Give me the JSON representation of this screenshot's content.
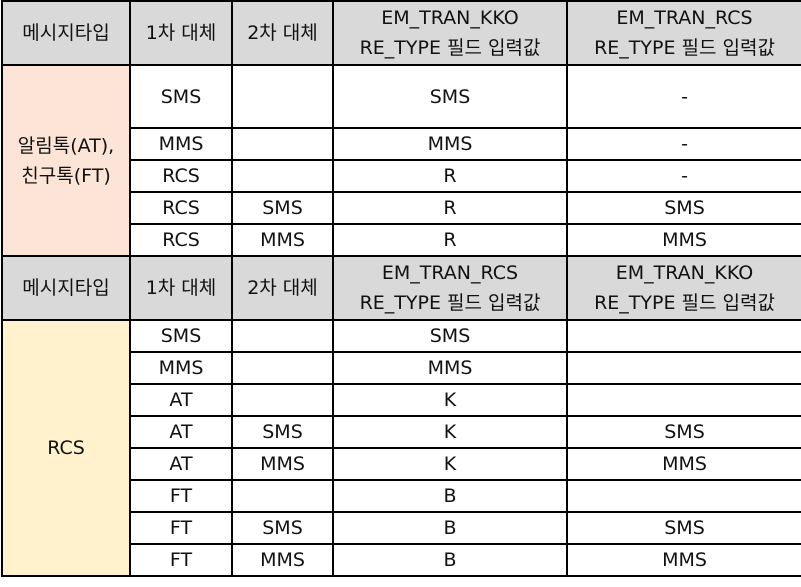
{
  "section1": {
    "header": {
      "col1": "메시지타입",
      "col2": "1차 대체",
      "col3": "2차 대체",
      "col4_line1": "EM_TRAN_KKO",
      "col4_line2": "RE_TYPE 필드 입력값",
      "col5_line1": "EM_TRAN_RCS",
      "col5_line2": "RE_TYPE 필드 입력값"
    },
    "category_line1": "알림톡(AT),",
    "category_line2": "친구톡(FT)",
    "rows": [
      {
        "first": "SMS",
        "second": "",
        "kko": "SMS",
        "rcs": "-"
      },
      {
        "first": "MMS",
        "second": "",
        "kko": "MMS",
        "rcs": "-"
      },
      {
        "first": "RCS",
        "second": "",
        "kko": "R",
        "rcs": "-"
      },
      {
        "first": "RCS",
        "second": "SMS",
        "kko": "R",
        "rcs": "SMS"
      },
      {
        "first": "RCS",
        "second": "MMS",
        "kko": "R",
        "rcs": "MMS"
      }
    ]
  },
  "section2": {
    "header": {
      "col1": "메시지타입",
      "col2": "1차 대체",
      "col3": "2차 대체",
      "col4_line1": "EM_TRAN_RCS",
      "col4_line2": "RE_TYPE 필드 입력값",
      "col5_line1": "EM_TRAN_KKO",
      "col5_line2": "RE_TYPE 필드 입력값"
    },
    "category": "RCS",
    "rows": [
      {
        "first": "SMS",
        "second": "",
        "rcs": "SMS",
        "kko": ""
      },
      {
        "first": "MMS",
        "second": "",
        "rcs": "MMS",
        "kko": ""
      },
      {
        "first": "AT",
        "second": "",
        "rcs": "K",
        "kko": ""
      },
      {
        "first": "AT",
        "second": "SMS",
        "rcs": "K",
        "kko": "SMS"
      },
      {
        "first": "AT",
        "second": "MMS",
        "rcs": "K",
        "kko": "MMS"
      },
      {
        "first": "FT",
        "second": "",
        "rcs": "B",
        "kko": ""
      },
      {
        "first": "FT",
        "second": "SMS",
        "rcs": "B",
        "kko": "SMS"
      },
      {
        "first": "FT",
        "second": "MMS",
        "rcs": "B",
        "kko": "MMS"
      }
    ]
  }
}
